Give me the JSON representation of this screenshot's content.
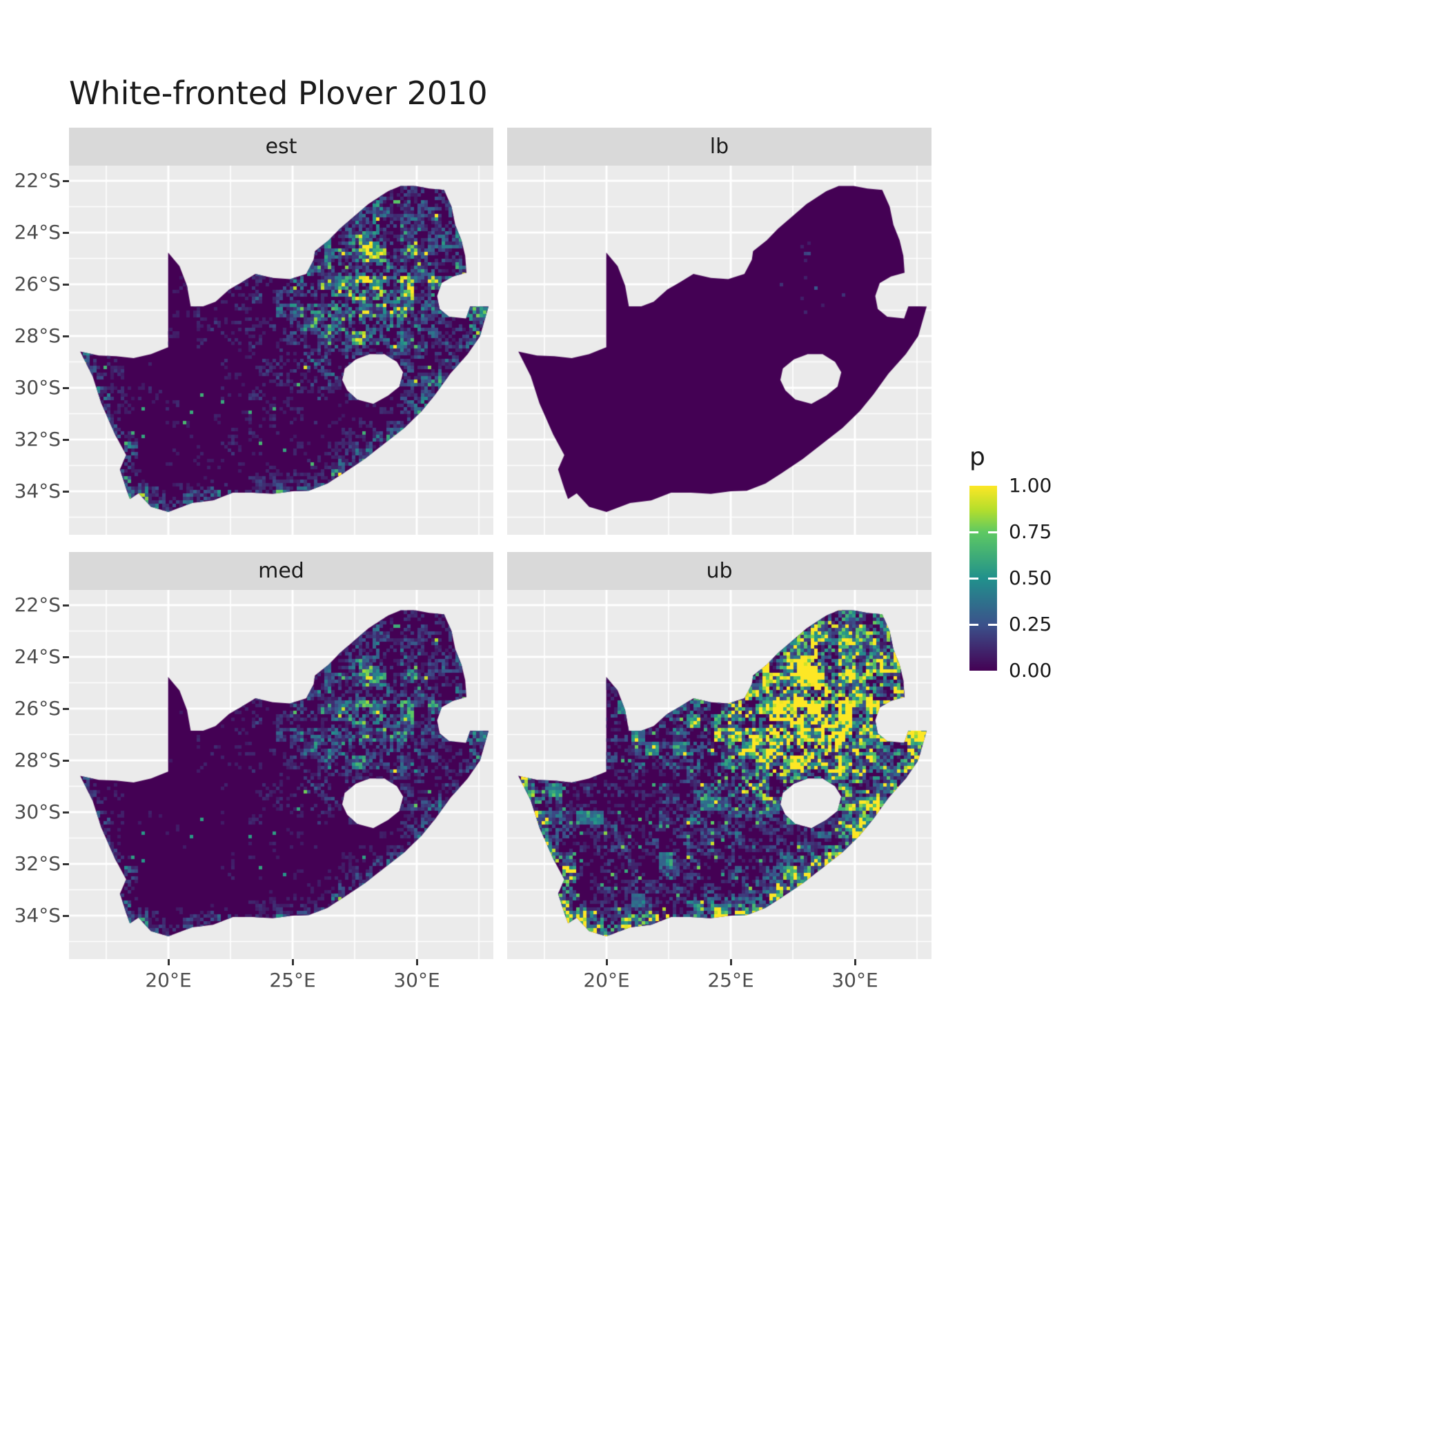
{
  "title": "White-fronted Plover 2010",
  "colors": {
    "background": "#FFFFFF",
    "panel_bg": "#EBEBEB",
    "strip_bg": "#D9D9D9",
    "grid": "#FFFFFF",
    "axis_text": "#4D4D4D",
    "tick": "#333333",
    "title_text": "#1A1A1A",
    "map_base": "#440154"
  },
  "chart_data": {
    "type": "heatmap",
    "subtype": "faceted-raster-map",
    "title": "White-fronted Plover 2010",
    "region": "South Africa",
    "variable": "p (occupancy / detection probability, viridis colour scale)",
    "value_range": [
      0,
      1
    ],
    "facets": [
      {
        "name": "est",
        "description": "Point estimate: mostly near-zero (dark purple) with scattered teal/green cells; green-yellow hotspot around Gauteng (~26°S 28°E) and along the southern and southwestern coast.",
        "render": {
          "gain": 0.9,
          "sub": 0,
          "cap": 1,
          "fineThr": 0.995,
          "fineAdd": 0.55,
          "coarseThr": 2,
          "coarseAdd": 0
        }
      },
      {
        "name": "lb",
        "description": "Lower bound: almost uniformly zero; only a few isolated dark-teal cells near Gauteng and the coast.",
        "render": {
          "gain": 0.5,
          "sub": 0.575,
          "cap": 0.55,
          "fineThr": 2,
          "fineAdd": 0,
          "coarseThr": 2,
          "coarseAdd": 0
        }
      },
      {
        "name": "med",
        "description": "Median: similar to the estimate but dimmer and sparser; mild hotspot near Gauteng and the south coast.",
        "render": {
          "gain": 0.62,
          "sub": 0,
          "cap": 1,
          "fineThr": 0.996,
          "fineAdd": 0.5,
          "coarseThr": 2,
          "coarseAdd": 0
        }
      },
      {
        "name": "ub",
        "description": "Upper bound: extensive yellow/green across the north-eastern highveld, eastern seaboard and southern coast; scattered bright cells elsewhere.",
        "render": {
          "gain": 2.6,
          "sub": 0,
          "cap": 1,
          "fineThr": 0.98,
          "fineAdd": 0.45,
          "coarseThr": 0.95,
          "coarseAdd": 0.25
        }
      }
    ],
    "x": {
      "ticks": [
        "20°E",
        "25°E",
        "30°E"
      ],
      "tick_lons": [
        20,
        25,
        30
      ],
      "range": [
        16.0,
        33.08
      ]
    },
    "y": {
      "ticks": [
        "22°S",
        "24°S",
        "26°S",
        "28°S",
        "30°S",
        "32°S",
        "34°S"
      ],
      "tick_lats": [
        -22,
        -24,
        -26,
        -28,
        -30,
        -32,
        -34
      ],
      "range": [
        -35.68,
        -21.41
      ]
    },
    "legend": {
      "title": "p",
      "labels": [
        "1.00",
        "0.75",
        "0.50",
        "0.25",
        "0.00"
      ],
      "values": [
        1.0,
        0.75,
        0.5,
        0.25,
        0.0
      ],
      "position": "right",
      "palette_name": "viridis"
    },
    "palette": {
      "name": "viridis",
      "stops": [
        [
          0,
          68,
          1,
          84
        ],
        [
          0.25,
          59,
          82,
          139
        ],
        [
          0.5,
          33,
          145,
          140
        ],
        [
          0.75,
          94,
          201,
          98
        ],
        [
          0.87,
          180,
          222,
          44
        ],
        [
          1,
          253,
          231,
          37
        ]
      ]
    },
    "grid": {
      "major_lons": [
        20,
        25,
        30
      ],
      "minor_lons": [
        17.5,
        22.5,
        27.5,
        32.5
      ],
      "major_lats": [
        -22,
        -24,
        -26,
        -28,
        -30,
        -32,
        -34
      ],
      "minor_lats": [
        -23,
        -25,
        -27,
        -29,
        -31,
        -33,
        -35
      ]
    },
    "hotspot": {
      "center_lon": 28.1,
      "center_lat": -26.15,
      "sigma_lon": 2.0,
      "sigma_lat": 1.7
    },
    "map_outline": [
      [
        16.45,
        -28.6
      ],
      [
        17.2,
        -28.75
      ],
      [
        17.9,
        -28.78
      ],
      [
        18.6,
        -28.85
      ],
      [
        19.3,
        -28.7
      ],
      [
        19.99,
        -28.43
      ],
      [
        19.99,
        -24.77
      ],
      [
        20.45,
        -25.3
      ],
      [
        20.75,
        -26.05
      ],
      [
        20.9,
        -26.85
      ],
      [
        21.4,
        -26.85
      ],
      [
        21.9,
        -26.67
      ],
      [
        22.45,
        -26.2
      ],
      [
        22.9,
        -25.95
      ],
      [
        23.5,
        -25.6
      ],
      [
        24.2,
        -25.75
      ],
      [
        24.9,
        -25.8
      ],
      [
        25.55,
        -25.6
      ],
      [
        25.85,
        -25.05
      ],
      [
        25.9,
        -24.72
      ],
      [
        26.45,
        -24.3
      ],
      [
        26.9,
        -23.85
      ],
      [
        27.45,
        -23.4
      ],
      [
        28.05,
        -22.9
      ],
      [
        28.85,
        -22.4
      ],
      [
        29.35,
        -22.2
      ],
      [
        29.95,
        -22.2
      ],
      [
        30.5,
        -22.3
      ],
      [
        31.1,
        -22.35
      ],
      [
        31.4,
        -23.0
      ],
      [
        31.55,
        -23.7
      ],
      [
        31.8,
        -24.3
      ],
      [
        31.95,
        -24.9
      ],
      [
        32.0,
        -25.55
      ],
      [
        31.45,
        -25.7
      ],
      [
        31.0,
        -25.95
      ],
      [
        30.82,
        -26.45
      ],
      [
        30.92,
        -26.95
      ],
      [
        31.3,
        -27.25
      ],
      [
        31.98,
        -27.32
      ],
      [
        32.15,
        -26.85
      ],
      [
        32.6,
        -26.85
      ],
      [
        32.89,
        -26.86
      ],
      [
        32.55,
        -28.0
      ],
      [
        32.05,
        -28.7
      ],
      [
        31.35,
        -29.45
      ],
      [
        30.75,
        -30.25
      ],
      [
        30.2,
        -30.9
      ],
      [
        29.5,
        -31.55
      ],
      [
        28.7,
        -32.15
      ],
      [
        27.9,
        -32.75
      ],
      [
        27.05,
        -33.3
      ],
      [
        26.4,
        -33.7
      ],
      [
        25.65,
        -33.98
      ],
      [
        25.0,
        -34.0
      ],
      [
        24.2,
        -34.1
      ],
      [
        23.4,
        -34.05
      ],
      [
        22.6,
        -34.05
      ],
      [
        21.8,
        -34.35
      ],
      [
        20.95,
        -34.45
      ],
      [
        20.0,
        -34.8
      ],
      [
        19.3,
        -34.6
      ],
      [
        18.8,
        -34.08
      ],
      [
        18.45,
        -34.3
      ],
      [
        18.3,
        -33.9
      ],
      [
        18.05,
        -33.15
      ],
      [
        18.3,
        -32.6
      ],
      [
        17.85,
        -31.8
      ],
      [
        17.3,
        -30.6
      ],
      [
        16.95,
        -29.55
      ]
    ],
    "coast_start_index": 42,
    "lesotho_hole": [
      [
        27.0,
        -29.7
      ],
      [
        27.1,
        -29.25
      ],
      [
        27.55,
        -28.9
      ],
      [
        28.1,
        -28.7
      ],
      [
        28.7,
        -28.7
      ],
      [
        29.2,
        -29.0
      ],
      [
        29.45,
        -29.4
      ],
      [
        29.3,
        -29.95
      ],
      [
        28.85,
        -30.3
      ],
      [
        28.25,
        -30.62
      ],
      [
        27.6,
        -30.45
      ],
      [
        27.2,
        -30.1
      ]
    ]
  }
}
